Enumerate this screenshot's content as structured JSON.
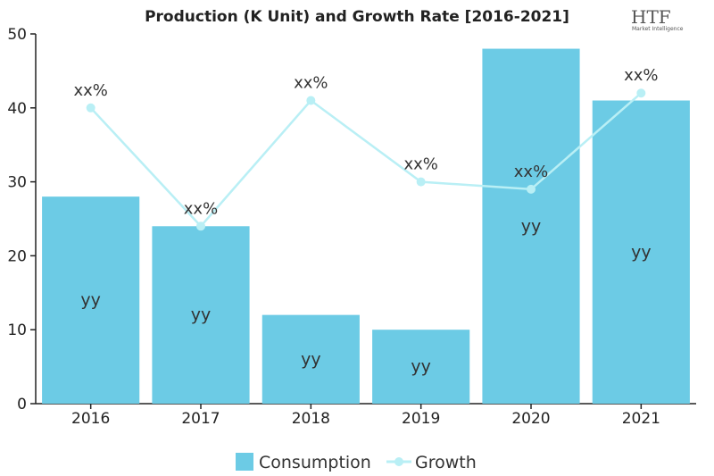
{
  "chart_data": {
    "type": "bar",
    "title": "Production (K Unit) and Growth Rate [2016-2021]",
    "categories": [
      "2016",
      "2017",
      "2018",
      "2019",
      "2020",
      "2021"
    ],
    "series": [
      {
        "name": "Consumption",
        "type": "bar",
        "values": [
          28,
          24,
          12,
          10,
          48,
          41
        ],
        "labels": [
          "yy",
          "yy",
          "yy",
          "yy",
          "yy",
          "yy"
        ]
      },
      {
        "name": "Growth",
        "type": "line",
        "values": [
          40,
          24,
          41,
          30,
          29,
          42
        ],
        "labels": [
          "xx%",
          "xx%",
          "xx%",
          "xx%",
          "xx%",
          "xx%"
        ]
      }
    ],
    "yticks": [
      "0",
      "10",
      "20",
      "30",
      "40",
      "50"
    ],
    "ylim": [
      0,
      50
    ],
    "grid": false,
    "legend": "bottom",
    "colors": {
      "bar": "#6ccbe5",
      "line": "#b9eff5",
      "axis": "#222222"
    }
  },
  "logo": {
    "text": "HTF",
    "subtext": "Market Intelligence"
  }
}
